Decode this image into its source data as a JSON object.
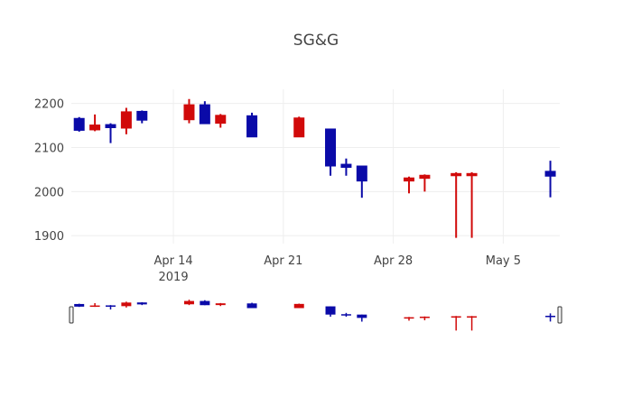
{
  "chart_data": {
    "type": "candlestick",
    "title": "SG&G",
    "xlabel": "",
    "ylabel": "",
    "ylim": [
      1882,
      2232
    ],
    "yticks": [
      1900,
      2000,
      2100,
      2200
    ],
    "xticks": [
      {
        "label": "Apr 14",
        "sublabel": "2019",
        "day": 6
      },
      {
        "label": "Apr 21",
        "sublabel": "",
        "day": 13
      },
      {
        "label": "Apr 28",
        "sublabel": "",
        "day": 20
      },
      {
        "label": "May 5",
        "sublabel": "",
        "day": 27
      }
    ],
    "x_start_day": -0.5,
    "x_end_day": 30.6,
    "colors": {
      "blue": "#0a0aa8",
      "red": "#d10a0a"
    },
    "candles": [
      {
        "date": "2019-04-08",
        "day": 0,
        "open": 2139,
        "high": 2169,
        "low": 2136,
        "close": 2166,
        "color": "blue"
      },
      {
        "date": "2019-04-09",
        "day": 1,
        "open": 2151,
        "high": 2175,
        "low": 2137,
        "close": 2140,
        "color": "red"
      },
      {
        "date": "2019-04-10",
        "day": 2,
        "open": 2145,
        "high": 2155,
        "low": 2110,
        "close": 2152,
        "color": "blue"
      },
      {
        "date": "2019-04-11",
        "day": 3,
        "open": 2181,
        "high": 2190,
        "low": 2130,
        "close": 2144,
        "color": "red"
      },
      {
        "date": "2019-04-12",
        "day": 4,
        "open": 2162,
        "high": 2184,
        "low": 2155,
        "close": 2182,
        "color": "blue"
      },
      {
        "date": "2019-04-15",
        "day": 7,
        "open": 2197,
        "high": 2210,
        "low": 2155,
        "close": 2163,
        "color": "red"
      },
      {
        "date": "2019-04-16",
        "day": 8,
        "open": 2154,
        "high": 2205,
        "low": 2154,
        "close": 2197,
        "color": "blue"
      },
      {
        "date": "2019-04-17",
        "day": 9,
        "open": 2173,
        "high": 2176,
        "low": 2145,
        "close": 2155,
        "color": "red"
      },
      {
        "date": "2019-04-19",
        "day": 11,
        "open": 2124,
        "high": 2179,
        "low": 2124,
        "close": 2172,
        "color": "blue"
      },
      {
        "date": "2019-04-22",
        "day": 14,
        "open": 2167,
        "high": 2170,
        "low": 2124,
        "close": 2124,
        "color": "red"
      },
      {
        "date": "2019-04-24",
        "day": 16,
        "open": 2058,
        "high": 2142,
        "low": 2036,
        "close": 2142,
        "color": "blue"
      },
      {
        "date": "2019-04-25",
        "day": 17,
        "open": 2055,
        "high": 2075,
        "low": 2036,
        "close": 2062,
        "color": "blue"
      },
      {
        "date": "2019-04-26",
        "day": 18,
        "open": 2024,
        "high": 2058,
        "low": 1986,
        "close": 2058,
        "color": "blue"
      },
      {
        "date": "2019-04-29",
        "day": 21,
        "open": 2031,
        "high": 2034,
        "low": 1996,
        "close": 2024,
        "color": "red"
      },
      {
        "date": "2019-04-30",
        "day": 22,
        "open": 2037,
        "high": 2039,
        "low": 2000,
        "close": 2030,
        "color": "red"
      },
      {
        "date": "2019-05-02",
        "day": 24,
        "open": 2041,
        "high": 2044,
        "low": 1895,
        "close": 2036,
        "color": "red"
      },
      {
        "date": "2019-05-03",
        "day": 25,
        "open": 2041,
        "high": 2044,
        "low": 1895,
        "close": 2036,
        "color": "red"
      },
      {
        "date": "2019-05-08",
        "day": 30,
        "open": 2035,
        "high": 2070,
        "low": 1987,
        "close": 2046,
        "color": "blue"
      }
    ],
    "rangeslider": {
      "visible": true
    },
    "grid": true,
    "legend": "none"
  }
}
